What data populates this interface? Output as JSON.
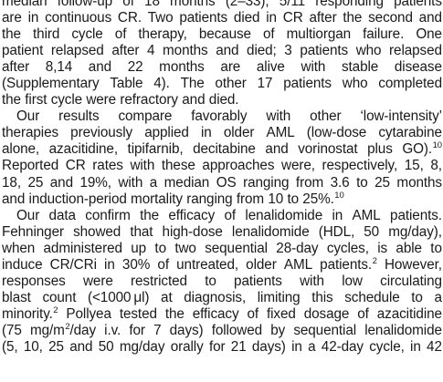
{
  "paragraphs": [
    {
      "indent": false,
      "lines": [
        "median follow-up of 18 months (2–33), 5/11 responding patients",
        "are in continuous CR. Two patients died in CR after the second and",
        "the third cycle of therapy, because of multiorgan failure. One",
        "patient relapsed after 4 months and died; 3 patients who relapsed",
        "after 8,14 and 22 months are alive with stable disease",
        "(Supplementary Table 4). The other 17 patients who completed",
        "the first cycle were refractory and died."
      ]
    },
    {
      "indent": true,
      "lines": [
        "Our results compare favorably with other ‘low-intensity’",
        "therapies previously applied in older AML (low-dose cytarabine",
        "alone, azacitidine, tipifarnib, decitabine and vorinostat plus GO).^10",
        "Reported CR rates with these approaches were, respectively, 15, 8,",
        "18, 25 and 19%, with a median OS ranging from 3.6 to 25 months",
        "and induction-period mortality ranging from 10 to 25%.^10"
      ]
    },
    {
      "indent": true,
      "lines": [
        "Our data confirm the efficacy of lenalidomide in AML patients.",
        "Fehninger showed that high-dose lenalidomide (HDL, 50 mg/day),",
        "when administered up to two sequential 28-day cycles, is able to",
        "induce CR/CRi in 30% of untreated, older AML patients.^2 However,",
        "responses were restricted to patients with low circulating",
        "blast count (<1000 μl) at diagnosis, limiting this schedule to a",
        "minority.^2 Pollyea tested the efficacy of fixed dosage of azacitidine",
        "(75 mg/m^2/day i.v. for 7 days) followed by sequential lenalidomide",
        "(5, 10, 25 and 50 mg/day orally for 21 days) in a 42-day cycle, in 42"
      ]
    }
  ]
}
